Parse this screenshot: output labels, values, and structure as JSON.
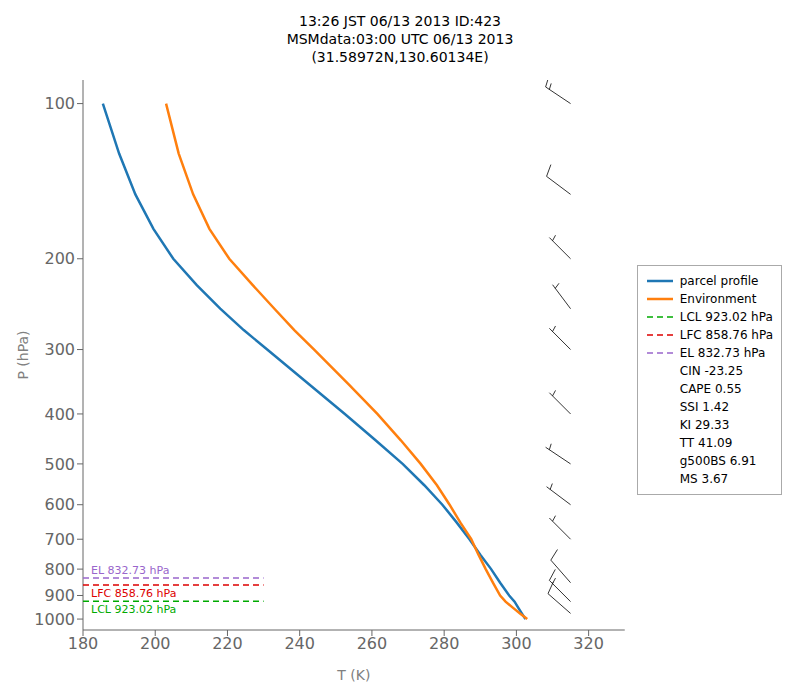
{
  "chart_data": {
    "type": "line",
    "title": "13:26 JST 06/13 2013  ID:423\nMSMdata:03:00 UTC 06/13 2013\n(31.58972N,130.60134E)",
    "x_label": "T (K)",
    "y_label": "P (hPa)",
    "xlim": [
      180,
      330
    ],
    "ylim": [
      1050,
      90
    ],
    "xticks": [
      180,
      200,
      220,
      240,
      260,
      280,
      300,
      320
    ],
    "yticks": [
      100,
      200,
      300,
      400,
      500,
      600,
      700,
      800,
      900,
      1000
    ],
    "log": "y",
    "grid": false,
    "legend": "right",
    "series": [
      {
        "name": "parcel profile",
        "color": "#1f77b4",
        "line_style": "solid",
        "x": [
          185.5,
          190.0,
          194.5,
          199.5,
          205.0,
          211.5,
          218.0,
          224.5,
          231.0,
          242.5,
          252.5,
          261.0,
          268.5,
          274.5,
          279.5,
          283.5,
          287.0,
          290.0,
          293.0,
          295.5,
          298.0,
          299.5,
          300.5,
          301.5,
          302.5
        ],
        "y": [
          100,
          125,
          150,
          175,
          200,
          225,
          250,
          275,
          300,
          350,
          400,
          450,
          500,
          550,
          600,
          650,
          700,
          750,
          800,
          850,
          900,
          925,
          950,
          975,
          1000
        ]
      },
      {
        "name": "Environment",
        "color": "#ff7f0e",
        "line_style": "solid",
        "x": [
          203.0,
          206.5,
          210.5,
          215.0,
          220.5,
          227.0,
          233.0,
          238.5,
          244.0,
          253.5,
          261.5,
          268.0,
          273.5,
          278.0,
          281.5,
          284.5,
          287.5,
          289.5,
          291.5,
          293.5,
          295.5,
          297.0,
          299.0,
          301.0,
          303.0
        ],
        "y": [
          100,
          125,
          150,
          175,
          200,
          225,
          250,
          275,
          300,
          350,
          400,
          450,
          500,
          550,
          600,
          650,
          700,
          750,
          800,
          850,
          900,
          925,
          950,
          975,
          1000
        ]
      }
    ],
    "levels": [
      {
        "label": "LCL 923.02 hPa",
        "value": 923.02,
        "color": "#00aa00",
        "line_style": "dashed",
        "x": [
          180,
          230
        ]
      },
      {
        "label": "LFC 858.76 hPa",
        "value": 858.76,
        "color": "#dd0000",
        "line_style": "dashed",
        "x": [
          180,
          230
        ]
      },
      {
        "label": "EL 832.73 hPa",
        "value": 832.73,
        "color": "#9966cc",
        "line_style": "dashed",
        "x": [
          180,
          230
        ]
      }
    ],
    "stats": [
      {
        "label": "CIN -23.25"
      },
      {
        "label": "CAPE 0.55"
      },
      {
        "label": "SSI 1.42"
      },
      {
        "label": "KI 29.33"
      },
      {
        "label": "TT 41.09"
      },
      {
        "label": "g500BS 6.91"
      },
      {
        "label": "MS 3.67"
      }
    ],
    "wind": {
      "x": 315,
      "levels": [
        100,
        150,
        200,
        250,
        300,
        400,
        500,
        600,
        700,
        850,
        925,
        975
      ],
      "u": [
        12,
        8,
        5,
        3,
        3,
        2,
        3,
        4,
        5,
        7,
        10,
        8
      ],
      "v": [
        -8,
        -6,
        -5,
        -4,
        -3,
        -2,
        -2,
        -3,
        -5,
        -8,
        -10,
        -7
      ],
      "color": "#000000",
      "increments": {
        "half": 5,
        "full": 10,
        "flag": 50
      }
    }
  }
}
